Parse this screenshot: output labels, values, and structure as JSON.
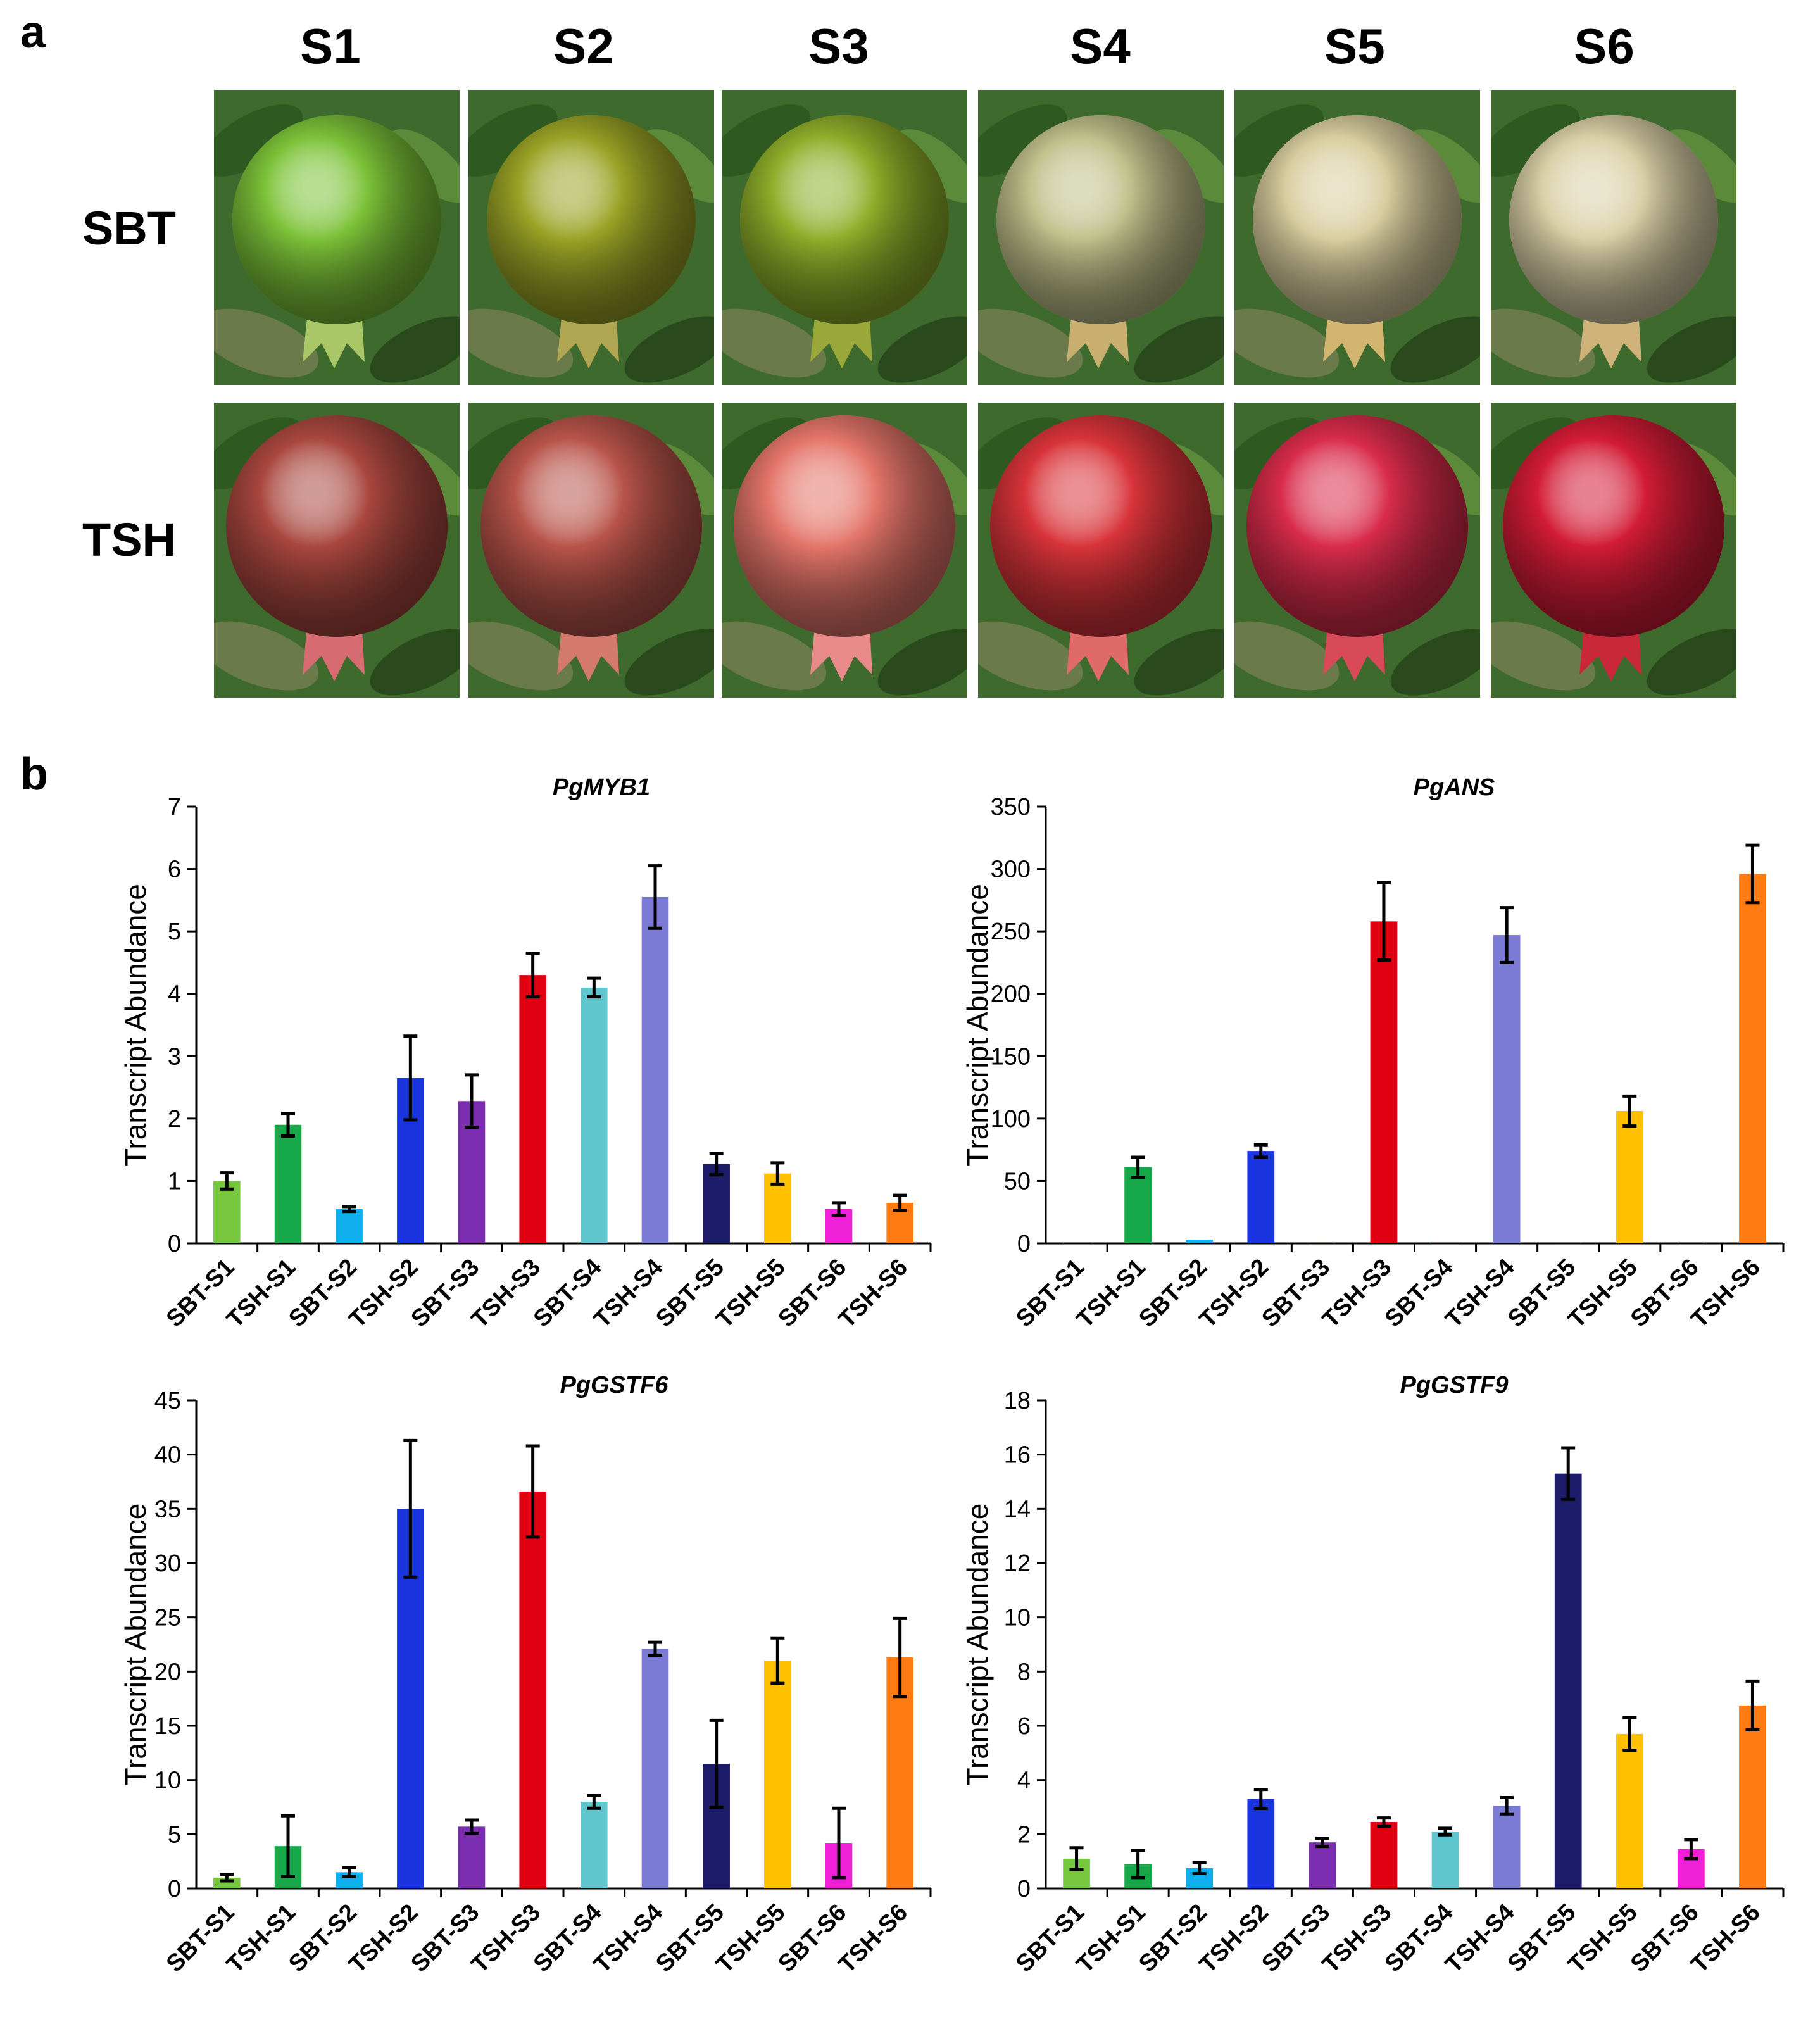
{
  "panel_a": {
    "letter": "a",
    "stages": [
      "S1",
      "S2",
      "S3",
      "S4",
      "S5",
      "S6"
    ],
    "rows": [
      {
        "label": "SBT",
        "fruit_colors": [
          "#7cc238",
          "#9aa326",
          "#8fae2a",
          "#bfc08a",
          "#d8cd9e",
          "#d9cfa6"
        ],
        "calyx_colors": [
          "#a9c766",
          "#b0a550",
          "#9aa83a",
          "#c9b070",
          "#d2b670",
          "#cfb27a"
        ]
      },
      {
        "label": "TSH",
        "fruit_colors": [
          "#a9473f",
          "#b8544a",
          "#e4756a",
          "#d8343a",
          "#d92c4a",
          "#d31c36"
        ],
        "calyx_colors": [
          "#d66c72",
          "#d47a6a",
          "#e98a8a",
          "#e06a6a",
          "#d84a58",
          "#c8283a"
        ]
      }
    ],
    "foliage_color": "#3f6a2e"
  },
  "panel_b": {
    "letter": "b"
  },
  "chart_data": [
    {
      "type": "bar",
      "title": "PgMYB1",
      "ylabel": "Transcript Abundance",
      "ylim": [
        0,
        7
      ],
      "yticks": [
        0,
        1,
        2,
        3,
        4,
        5,
        6,
        7
      ],
      "categories": [
        "SBT-S1",
        "TSH-S1",
        "SBT-S2",
        "TSH-S2",
        "SBT-S3",
        "TSH-S3",
        "SBT-S4",
        "TSH-S4",
        "SBT-S5",
        "TSH-S5",
        "SBT-S6",
        "TSH-S6"
      ],
      "values": [
        1.0,
        1.9,
        0.55,
        2.65,
        2.28,
        4.3,
        4.1,
        5.55,
        1.27,
        1.12,
        0.55,
        0.65
      ],
      "errors": [
        0.13,
        0.18,
        0.04,
        0.67,
        0.42,
        0.35,
        0.15,
        0.5,
        0.17,
        0.17,
        0.1,
        0.12
      ],
      "colors": [
        "#76c63e",
        "#17a84a",
        "#10b0ee",
        "#1a35e0",
        "#7b2fb0",
        "#e00012",
        "#5ec6cc",
        "#7b7bd6",
        "#1c1c6a",
        "#ffc000",
        "#f020d8",
        "#ff7a10"
      ]
    },
    {
      "type": "bar",
      "title": "PgANS",
      "ylabel": "Transcript Abundance",
      "ylim": [
        0,
        350
      ],
      "yticks": [
        0,
        50,
        100,
        150,
        200,
        250,
        300,
        350
      ],
      "categories": [
        "SBT-S1",
        "TSH-S1",
        "SBT-S2",
        "TSH-S2",
        "SBT-S3",
        "TSH-S3",
        "SBT-S4",
        "TSH-S4",
        "SBT-S5",
        "TSH-S5",
        "SBT-S6",
        "TSH-S6"
      ],
      "values": [
        0.5,
        61,
        3,
        74,
        0.5,
        258,
        0.5,
        247,
        0.5,
        106,
        0.5,
        296
      ],
      "errors": [
        0,
        8,
        0,
        5,
        0,
        31,
        0,
        22,
        0,
        12,
        0,
        23
      ],
      "colors": [
        "#76c63e",
        "#17a84a",
        "#10b0ee",
        "#1a35e0",
        "#7b2fb0",
        "#e00012",
        "#5ec6cc",
        "#7b7bd6",
        "#1c1c6a",
        "#ffc000",
        "#f020d8",
        "#ff7a10"
      ]
    },
    {
      "type": "bar",
      "title": "PgGSTF6",
      "ylabel": "Transcript Abundance",
      "ylim": [
        0,
        45
      ],
      "yticks": [
        0,
        5,
        10,
        15,
        20,
        25,
        30,
        35,
        40,
        45
      ],
      "categories": [
        "SBT-S1",
        "TSH-S1",
        "SBT-S2",
        "TSH-S2",
        "SBT-S3",
        "TSH-S3",
        "SBT-S4",
        "TSH-S4",
        "SBT-S5",
        "TSH-S5",
        "SBT-S6",
        "TSH-S6"
      ],
      "values": [
        1.0,
        3.9,
        1.5,
        35.0,
        5.7,
        36.6,
        8.0,
        22.1,
        11.5,
        21.0,
        4.2,
        21.3
      ],
      "errors": [
        0.3,
        2.8,
        0.4,
        6.3,
        0.6,
        4.2,
        0.6,
        0.6,
        4.0,
        2.1,
        3.2,
        3.6
      ],
      "colors": [
        "#76c63e",
        "#17a84a",
        "#10b0ee",
        "#1a35e0",
        "#7b2fb0",
        "#e00012",
        "#5ec6cc",
        "#7b7bd6",
        "#1c1c6a",
        "#ffc000",
        "#f020d8",
        "#ff7a10"
      ]
    },
    {
      "type": "bar",
      "title": "PgGSTF9",
      "ylabel": "Transcript Abundance",
      "ylim": [
        0,
        18
      ],
      "yticks": [
        0,
        2,
        4,
        6,
        8,
        10,
        12,
        14,
        16,
        18
      ],
      "categories": [
        "SBT-S1",
        "TSH-S1",
        "SBT-S2",
        "TSH-S2",
        "SBT-S3",
        "TSH-S3",
        "SBT-S4",
        "TSH-S4",
        "SBT-S5",
        "TSH-S5",
        "SBT-S6",
        "TSH-S6"
      ],
      "values": [
        1.1,
        0.9,
        0.75,
        3.3,
        1.7,
        2.45,
        2.1,
        3.05,
        15.3,
        5.7,
        1.45,
        6.75
      ],
      "errors": [
        0.4,
        0.5,
        0.2,
        0.35,
        0.15,
        0.15,
        0.12,
        0.3,
        0.95,
        0.6,
        0.35,
        0.9
      ],
      "colors": [
        "#76c63e",
        "#17a84a",
        "#10b0ee",
        "#1a35e0",
        "#7b2fb0",
        "#e00012",
        "#5ec6cc",
        "#7b7bd6",
        "#1c1c6a",
        "#ffc000",
        "#f020d8",
        "#ff7a10"
      ]
    }
  ]
}
